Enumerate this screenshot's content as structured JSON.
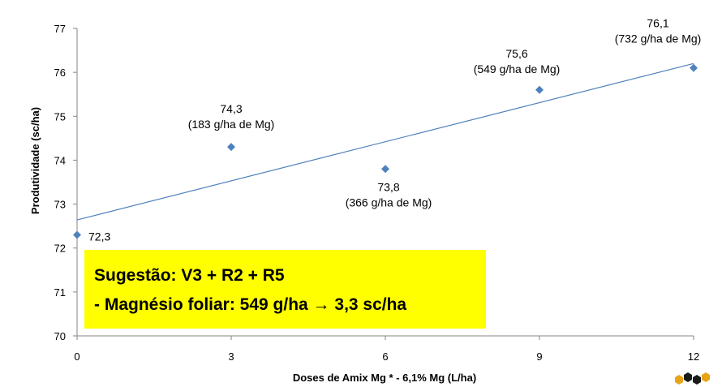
{
  "chart_data": {
    "type": "scatter",
    "xlabel": "Doses de Amix Mg * - 6,1% Mg (L/ha)",
    "ylabel": "Produtividade (sc/ha)",
    "xlim": [
      0,
      12
    ],
    "ylim": [
      70,
      77
    ],
    "x_ticks": [
      "0",
      "3",
      "6",
      "9",
      "12"
    ],
    "y_ticks": [
      "70",
      "71",
      "72",
      "73",
      "74",
      "75",
      "76",
      "77"
    ],
    "grid": false,
    "series": [
      {
        "marker": "diamond",
        "color": "#4f81bd",
        "points": [
          {
            "x": 0,
            "y": 72.3,
            "label": "72,3",
            "sublabel": ""
          },
          {
            "x": 3,
            "y": 74.3,
            "label": "74,3",
            "sublabel": "(183 g/ha de Mg)"
          },
          {
            "x": 6,
            "y": 73.8,
            "label": "73,8",
            "sublabel": "(366 g/ha de Mg)"
          },
          {
            "x": 9,
            "y": 75.6,
            "label": "75,6",
            "sublabel": "(549 g/ha de Mg)"
          },
          {
            "x": 12,
            "y": 76.1,
            "label": "76,1",
            "sublabel": "(732 g/ha de Mg)"
          }
        ]
      }
    ],
    "trendline": {
      "type": "linear",
      "color": "#4f81bd",
      "y_at_x0": 72.64,
      "y_at_x12": 76.2
    }
  },
  "callout": {
    "line1": "Sugestão: V3 + R2 + R5",
    "line2": "- Magnésio foliar: 549 g/ha → 3,3 sc/ha",
    "background": "#ffff00"
  },
  "logo": {
    "icon": "hexagon-logo-icon"
  }
}
